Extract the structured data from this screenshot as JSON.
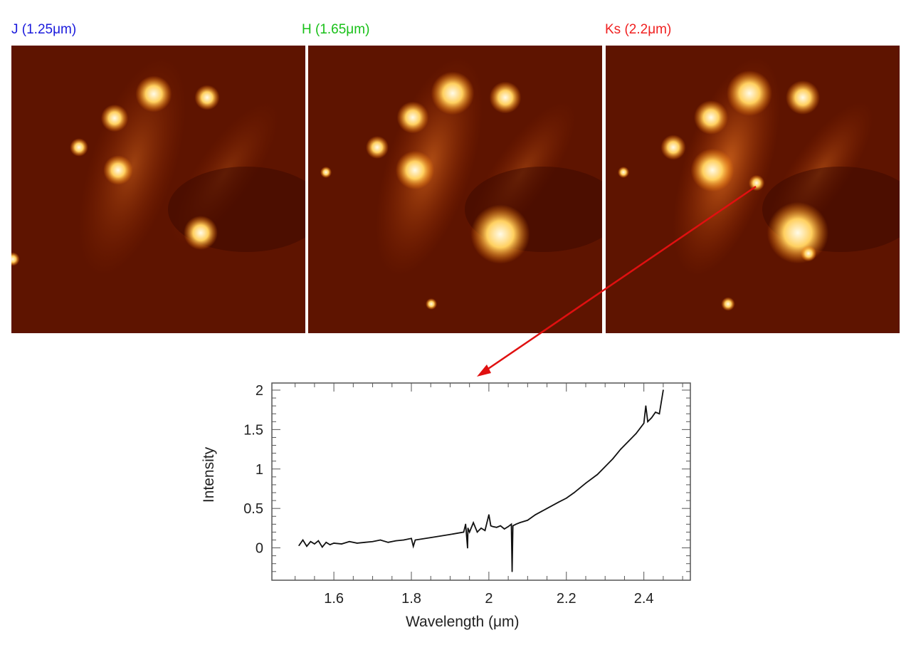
{
  "panels": [
    {
      "label": "J (1.25μm)",
      "color": "#1a1adc"
    },
    {
      "label": "H (1.65μm)",
      "color": "#18c018"
    },
    {
      "label": "Ks (2.2μm)",
      "color": "#f02020"
    }
  ],
  "arrow_color": "#e01010",
  "chart_data": {
    "type": "line",
    "xlabel": "Wavelength (μm)",
    "ylabel": "Intensity",
    "xlim": [
      1.44,
      2.52
    ],
    "ylim": [
      -0.41,
      2.09
    ],
    "xticks": [
      "1.6",
      "1.8",
      "2",
      "2.2",
      "2.4"
    ],
    "yticks": [
      "0",
      "0.5",
      "1",
      "1.5",
      "2"
    ],
    "grid": false,
    "series": [
      {
        "x": [
          1.51,
          1.52,
          1.53,
          1.54,
          1.55,
          1.56,
          1.57,
          1.58,
          1.59,
          1.6,
          1.62,
          1.64,
          1.66,
          1.68,
          1.7,
          1.72,
          1.74,
          1.76,
          1.78,
          1.8,
          1.805,
          1.81,
          1.85,
          1.9,
          1.935,
          1.94,
          1.945,
          1.946,
          1.95,
          1.96,
          1.97,
          1.98,
          1.99,
          2.0,
          2.005,
          2.01,
          2.02,
          2.03,
          2.04,
          2.05,
          2.058,
          2.06,
          2.062,
          2.07,
          2.08,
          2.1,
          2.12,
          2.15,
          2.18,
          2.2,
          2.22,
          2.25,
          2.28,
          2.3,
          2.32,
          2.34,
          2.36,
          2.38,
          2.4,
          2.405,
          2.41,
          2.42,
          2.43,
          2.44,
          2.445,
          2.45
        ],
        "y": [
          0.03,
          0.1,
          0.02,
          0.08,
          0.05,
          0.09,
          0.01,
          0.07,
          0.04,
          0.06,
          0.05,
          0.08,
          0.06,
          0.07,
          0.08,
          0.1,
          0.07,
          0.09,
          0.1,
          0.12,
          0.02,
          0.1,
          0.13,
          0.17,
          0.2,
          0.3,
          0.0,
          0.25,
          0.2,
          0.32,
          0.2,
          0.25,
          0.22,
          0.42,
          0.28,
          0.27,
          0.26,
          0.28,
          0.24,
          0.27,
          0.3,
          -0.3,
          0.28,
          0.3,
          0.32,
          0.35,
          0.42,
          0.5,
          0.58,
          0.63,
          0.7,
          0.82,
          0.93,
          1.03,
          1.13,
          1.25,
          1.35,
          1.45,
          1.58,
          1.8,
          1.6,
          1.65,
          1.72,
          1.7,
          1.85,
          2.0
        ]
      }
    ]
  }
}
